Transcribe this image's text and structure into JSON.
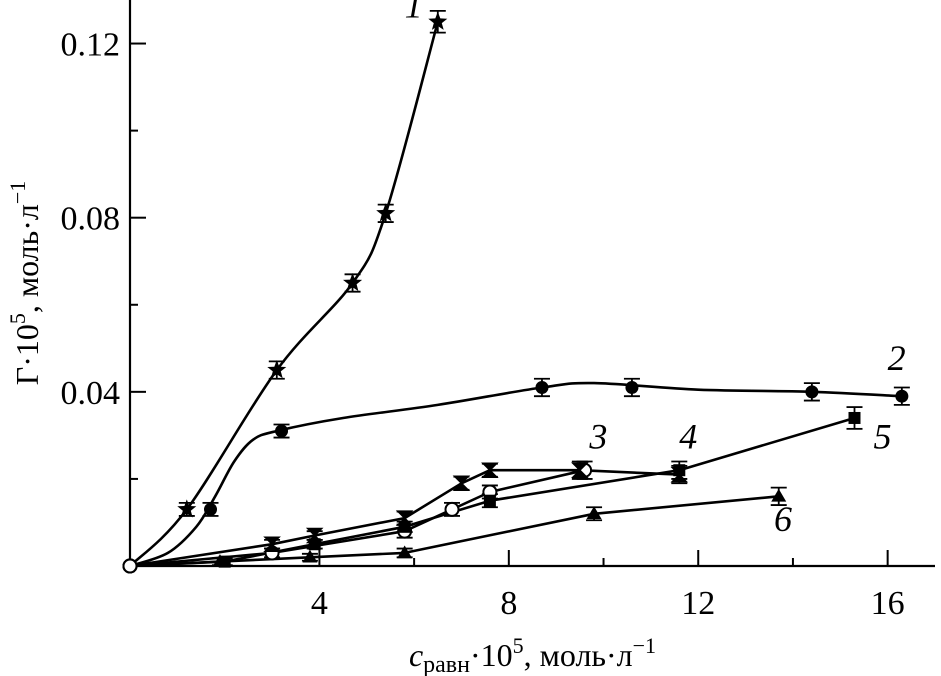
{
  "chart_data": {
    "type": "line",
    "title": "",
    "xlabel": {
      "symbol": "c",
      "subscript": "равн",
      "rest": "·10",
      "sup": "5",
      "unit": ", моль·л",
      "unit_sup": "−1"
    },
    "ylabel": {
      "symbol": "Γ·10",
      "sup": "5",
      "unit": ", моль·л",
      "unit_sup": "−1"
    },
    "xlim": [
      0,
      17
    ],
    "ylim": [
      0,
      0.13
    ],
    "x_ticks": [
      {
        "value": 4,
        "label": "4"
      },
      {
        "value": 8,
        "label": "8"
      },
      {
        "value": 12,
        "label": "12"
      },
      {
        "value": 16,
        "label": "16"
      }
    ],
    "y_ticks": [
      {
        "value": 0.04,
        "label": "0.04"
      },
      {
        "value": 0.08,
        "label": "0.08"
      },
      {
        "value": 0.12,
        "label": "0.12"
      }
    ],
    "x_minor_ticks": [
      2,
      6,
      10,
      14
    ],
    "y_minor_ticks": [
      0.02,
      0.06,
      0.1
    ],
    "grid": false,
    "series": [
      {
        "name": "1",
        "marker": "star",
        "label_at": [
          5.8,
          0.126
        ],
        "points": [
          [
            0,
            0
          ],
          [
            1.2,
            0.013
          ],
          [
            3.1,
            0.045
          ],
          [
            4.7,
            0.065
          ],
          [
            5.4,
            0.081
          ],
          [
            6.5,
            0.125
          ]
        ],
        "errors": [
          0,
          0.0015,
          0.002,
          0.002,
          0.002,
          0.0025
        ]
      },
      {
        "name": "2",
        "marker": "circle-filled",
        "label_at": [
          16.0,
          0.045
        ],
        "curve": [
          [
            0,
            0
          ],
          [
            0.8,
            0.003
          ],
          [
            1.4,
            0.009
          ],
          [
            1.8,
            0.016
          ],
          [
            2.2,
            0.024
          ],
          [
            2.6,
            0.029
          ],
          [
            3.1,
            0.031
          ],
          [
            4.5,
            0.034
          ],
          [
            6.5,
            0.037
          ],
          [
            8.7,
            0.041
          ],
          [
            9.8,
            0.042
          ],
          [
            12,
            0.0405
          ],
          [
            14.4,
            0.04
          ],
          [
            16.3,
            0.039
          ]
        ],
        "points": [
          [
            0,
            0
          ],
          [
            1.7,
            0.013
          ],
          [
            3.2,
            0.031
          ],
          [
            8.7,
            0.041
          ],
          [
            10.6,
            0.041
          ],
          [
            14.4,
            0.04
          ],
          [
            16.3,
            0.039
          ]
        ],
        "errors": [
          0,
          0.0015,
          0.0015,
          0.002,
          0.002,
          0.002,
          0.002
        ]
      },
      {
        "name": "3",
        "marker": "circle-open",
        "label_at": [
          9.7,
          0.027
        ],
        "points": [
          [
            0,
            0
          ],
          [
            3.0,
            0.003
          ],
          [
            5.8,
            0.008
          ],
          [
            6.8,
            0.013
          ],
          [
            7.6,
            0.017
          ],
          [
            9.6,
            0.022
          ]
        ],
        "errors": [
          0,
          0.001,
          0.0015,
          0.0015,
          0.0015,
          0.002
        ]
      },
      {
        "name": "4",
        "marker": "hourglass",
        "label_at": [
          11.6,
          0.027
        ],
        "points": [
          [
            0,
            0
          ],
          [
            3.0,
            0.005
          ],
          [
            3.9,
            0.007
          ],
          [
            5.8,
            0.011
          ],
          [
            7.0,
            0.019
          ],
          [
            7.6,
            0.022
          ],
          [
            9.5,
            0.022
          ],
          [
            11.6,
            0.021
          ]
        ],
        "errors": [
          0,
          0.001,
          0.001,
          0.0015,
          0.0015,
          0.0015,
          0.002,
          0.002
        ]
      },
      {
        "name": "5",
        "marker": "square",
        "label_at": [
          15.7,
          0.027
        ],
        "points": [
          [
            0,
            0
          ],
          [
            2.0,
            0.001
          ],
          [
            3.9,
            0.005
          ],
          [
            5.8,
            0.009
          ],
          [
            7.6,
            0.015
          ],
          [
            11.6,
            0.022
          ],
          [
            15.3,
            0.034
          ]
        ],
        "errors": [
          0,
          0.0008,
          0.001,
          0.0012,
          0.0015,
          0.002,
          0.0025
        ]
      },
      {
        "name": "6",
        "marker": "triangle",
        "label_at": [
          13.6,
          0.008
        ],
        "points": [
          [
            0,
            0
          ],
          [
            1.9,
            0.001
          ],
          [
            3.8,
            0.002
          ],
          [
            5.8,
            0.003
          ],
          [
            9.8,
            0.012
          ],
          [
            13.7,
            0.016
          ]
        ],
        "errors": [
          0,
          0.0008,
          0.0008,
          0.001,
          0.0015,
          0.002
        ]
      }
    ]
  }
}
